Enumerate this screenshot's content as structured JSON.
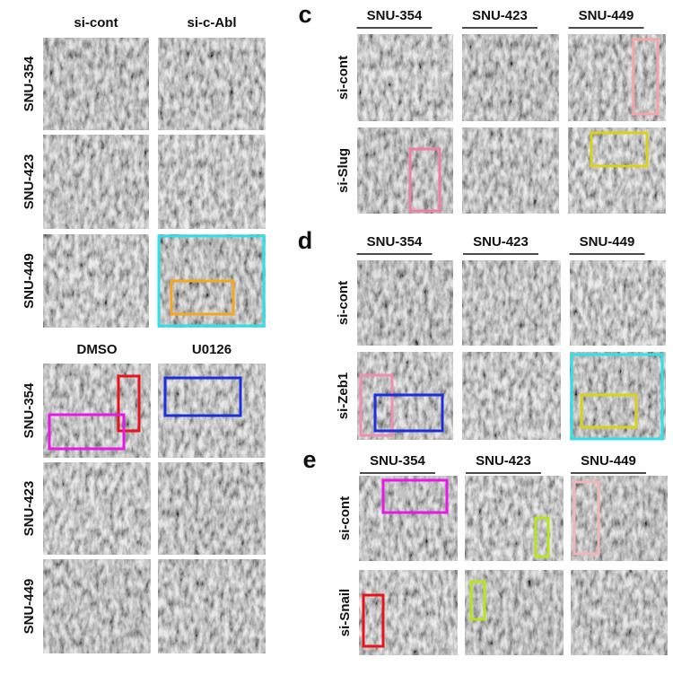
{
  "panels": [
    {
      "columns": [
        "si-cont",
        "si-c-Abl"
      ],
      "rows": [
        "SNU-354",
        "SNU-423",
        "SNU-449"
      ]
    },
    {
      "columns": [
        "DMSO",
        "U0126"
      ],
      "rows": [
        "SNU-354",
        "SNU-423",
        "SNU-449"
      ]
    },
    {
      "label": "c",
      "columns": [
        "SNU-354",
        "SNU-423",
        "SNU-449"
      ],
      "rows": [
        "si-cont",
        "si-Slug"
      ]
    },
    {
      "label": "d",
      "columns": [
        "SNU-354",
        "SNU-423",
        "SNU-449"
      ],
      "rows": [
        "si-cont",
        "si-Zeb1"
      ]
    },
    {
      "label": "e",
      "columns": [
        "SNU-354",
        "SNU-423",
        "SNU-449"
      ],
      "rows": [
        "si-cont",
        "si-Snail"
      ]
    }
  ]
}
